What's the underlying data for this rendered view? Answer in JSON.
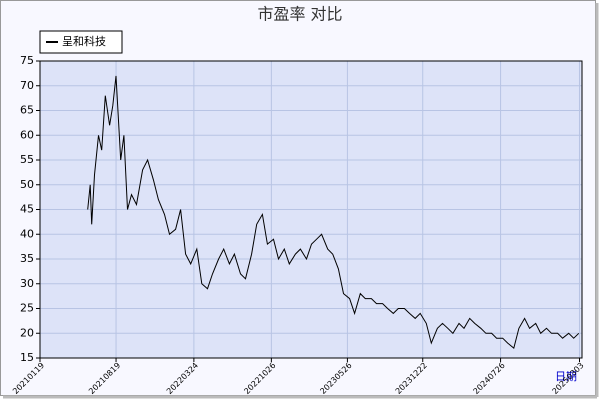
{
  "chart_data": {
    "type": "line",
    "title": "市盈率  对比",
    "x_label": "日期",
    "x": [
      "2021-06-01",
      "2021-06-08",
      "2021-06-12",
      "2021-06-20",
      "2021-07-01",
      "2021-07-10",
      "2021-07-20",
      "2021-08-01",
      "2021-08-10",
      "2021-08-19",
      "2021-09-01",
      "2021-09-10",
      "2021-09-20",
      "2021-10-01",
      "2021-10-15",
      "2021-11-01",
      "2021-11-15",
      "2021-12-01",
      "2021-12-15",
      "2022-01-01",
      "2022-01-15",
      "2022-02-01",
      "2022-02-15",
      "2022-03-01",
      "2022-03-15",
      "2022-04-01",
      "2022-04-15",
      "2022-05-01",
      "2022-05-15",
      "2022-06-01",
      "2022-06-15",
      "2022-07-01",
      "2022-07-15",
      "2022-08-01",
      "2022-08-15",
      "2022-09-01",
      "2022-09-15",
      "2022-10-01",
      "2022-10-15",
      "2022-11-01",
      "2022-11-15",
      "2022-12-01",
      "2022-12-15",
      "2023-01-01",
      "2023-01-15",
      "2023-02-01",
      "2023-02-15",
      "2023-03-01",
      "2023-03-15",
      "2023-04-01",
      "2023-04-15",
      "2023-05-01",
      "2023-05-15",
      "2023-06-01",
      "2023-06-15",
      "2023-07-01",
      "2023-07-15",
      "2023-08-01",
      "2023-08-15",
      "2023-09-01",
      "2023-09-15",
      "2023-10-01",
      "2023-10-15",
      "2023-11-01",
      "2023-11-15",
      "2023-12-01",
      "2023-12-15",
      "2024-01-01",
      "2024-01-15",
      "2024-02-01",
      "2024-02-15",
      "2024-03-01",
      "2024-03-15",
      "2024-04-01",
      "2024-04-15",
      "2024-05-01",
      "2024-05-15",
      "2024-06-01",
      "2024-06-15",
      "2024-07-01",
      "2024-07-15",
      "2024-08-01",
      "2024-08-15",
      "2024-09-01",
      "2024-09-15",
      "2024-10-01",
      "2024-10-15",
      "2024-11-01",
      "2024-11-15",
      "2024-12-01",
      "2024-12-15",
      "2025-01-01",
      "2025-01-15",
      "2025-02-01",
      "2025-02-15",
      "2025-03-01"
    ],
    "series": [
      {
        "name": "呈和科技",
        "color": "#000000",
        "values": [
          45,
          50,
          42,
          52,
          60,
          57,
          68,
          62,
          66,
          72,
          55,
          60,
          45,
          48,
          46,
          53,
          55,
          51,
          47,
          44,
          40,
          41,
          45,
          36,
          34,
          37,
          30,
          29,
          32,
          35,
          37,
          34,
          36,
          32,
          31,
          36,
          42,
          44,
          38,
          39,
          35,
          37,
          34,
          36,
          37,
          35,
          38,
          39,
          40,
          37,
          36,
          33,
          28,
          27,
          24,
          28,
          27,
          27,
          26,
          26,
          25,
          24,
          25,
          25,
          24,
          23,
          24,
          22,
          18,
          21,
          22,
          21,
          20,
          22,
          21,
          23,
          22,
          21,
          20,
          20,
          19,
          19,
          18,
          17,
          21,
          23,
          21,
          22,
          20,
          21,
          20,
          20,
          19,
          20,
          19,
          20
        ]
      }
    ],
    "xlim": [
      "2021-01-19",
      "2025-03-10"
    ],
    "xticks": [
      {
        "value": "2021-01-19",
        "label": "20210119"
      },
      {
        "value": "2021-08-19",
        "label": "20210819"
      },
      {
        "value": "2022-03-24",
        "label": "20220324"
      },
      {
        "value": "2022-10-26",
        "label": "20221026"
      },
      {
        "value": "2023-05-26",
        "label": "20230526"
      },
      {
        "value": "2023-12-22",
        "label": "20231222"
      },
      {
        "value": "2024-07-26",
        "label": "20240726"
      },
      {
        "value": "2025-03-03",
        "label": "20250303"
      }
    ],
    "ylim": [
      15,
      75
    ],
    "yticks": [
      15,
      20,
      25,
      30,
      35,
      40,
      45,
      50,
      55,
      60,
      65,
      70,
      75
    ],
    "grid": true
  }
}
